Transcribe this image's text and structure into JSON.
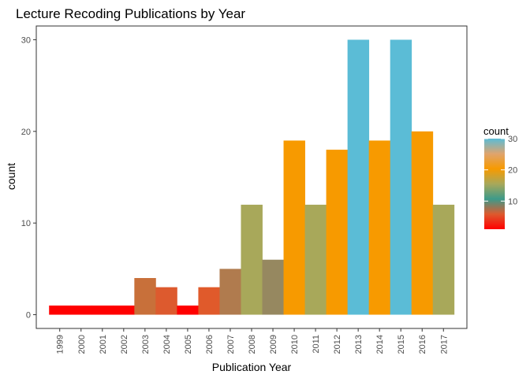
{
  "chart_data": {
    "type": "bar",
    "title": "Lecture Recoding Publications by Year",
    "xlabel": "Publication Year",
    "ylabel": "count",
    "categories": [
      "1999",
      "2000",
      "2001",
      "2002",
      "2003",
      "2004",
      "2005",
      "2006",
      "2007",
      "2008",
      "2009",
      "2010",
      "2011",
      "2012",
      "2013",
      "2014",
      "2015",
      "2016",
      "2017"
    ],
    "values": [
      1,
      1,
      1,
      1,
      4,
      3,
      1,
      3,
      5,
      12,
      6,
      19,
      12,
      18,
      30,
      19,
      30,
      20,
      12
    ],
    "bar_colors": [
      "#FF0000",
      "#FF0000",
      "#FF0000",
      "#FF0000",
      "#C8703A",
      "#DD5A2E",
      "#FF0000",
      "#E05A2B",
      "#B07B4E",
      "#A8A85A",
      "#968860",
      "#F79A00",
      "#A8A85A",
      "#F79A00",
      "#5BBCD6",
      "#F79A00",
      "#5BBCD6",
      "#F79A00",
      "#A8A85A"
    ],
    "yticks": [
      0,
      10,
      20,
      30
    ],
    "ylim": [
      -1.5,
      31.5
    ],
    "grid": false,
    "legend": {
      "title": "count",
      "placement": "right",
      "ticks": [
        10,
        20,
        30
      ],
      "range": [
        1,
        30
      ],
      "gradient_colors": [
        "#FF0000",
        "#DD5A2E",
        "#3D9A8A",
        "#A8A85A",
        "#F79A00",
        "#DFA46E",
        "#5BBCD6"
      ]
    }
  }
}
